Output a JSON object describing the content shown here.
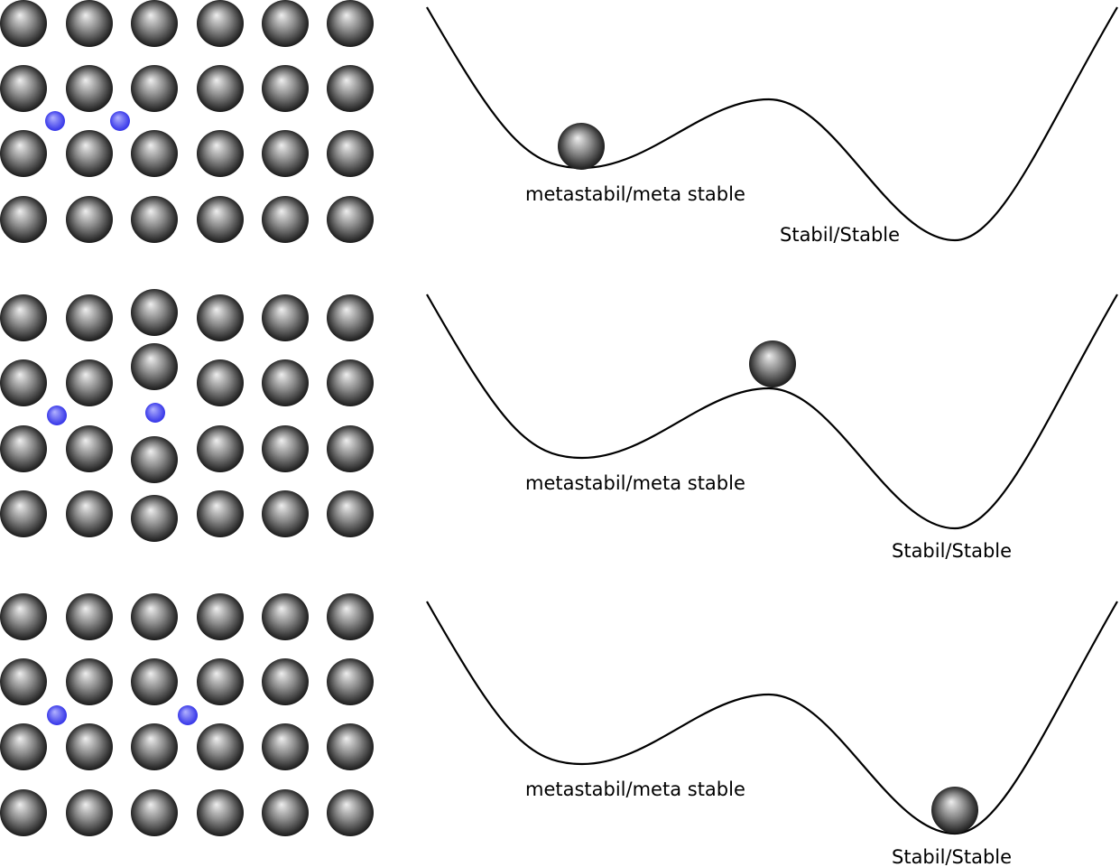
{
  "colors": {
    "atom_light": "#eeeeee",
    "atom_mid": "#8c8c8c",
    "atom_dark": "#0a0a0a",
    "interstitial_light": "#b3b3ff",
    "interstitial_dark": "#2a2ae6",
    "curve": "#000000",
    "text": "#000000"
  },
  "panels": [
    {
      "state": "metastable",
      "labels": {
        "metastable": "metastabil/meta stable",
        "stable": "Stabil/Stable"
      }
    },
    {
      "state": "transition",
      "labels": {
        "metastable": "metastabil/meta stable",
        "stable": "Stabil/Stable"
      }
    },
    {
      "state": "stable",
      "labels": {
        "metastable": "metastabil/meta stable",
        "stable": "Stabil/Stable"
      }
    }
  ]
}
